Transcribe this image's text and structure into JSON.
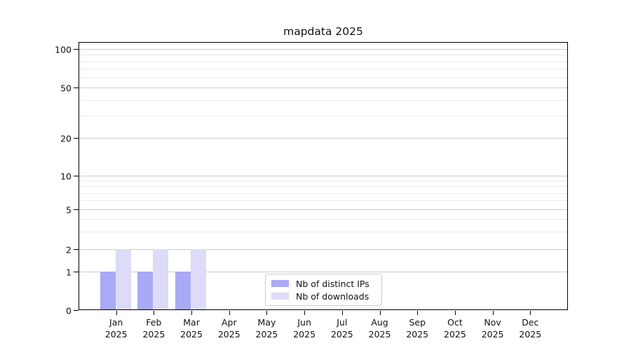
{
  "chart_data": {
    "type": "bar",
    "title": "mapdata 2025",
    "categories": [
      "Jan",
      "Feb",
      "Mar",
      "Apr",
      "May",
      "Jun",
      "Jul",
      "Aug",
      "Sep",
      "Oct",
      "Nov",
      "Dec"
    ],
    "category_year": "2025",
    "series": [
      {
        "name": "Nb of distinct IPs",
        "color": "#a9a9f5",
        "values": [
          1,
          1,
          1,
          0,
          0,
          0,
          0,
          0,
          0,
          0,
          0,
          0
        ]
      },
      {
        "name": "Nb of downloads",
        "color": "#dcdcf8",
        "values": [
          2,
          2,
          2,
          0,
          0,
          0,
          0,
          0,
          0,
          0,
          0,
          0
        ]
      }
    ],
    "yaxis": {
      "scale": "symlog",
      "ticks": [
        0,
        1,
        2,
        5,
        10,
        20,
        50,
        100
      ],
      "minor_ticks": [
        3,
        4,
        6,
        7,
        8,
        9,
        30,
        40,
        60,
        70,
        80,
        90
      ],
      "ylim": [
        0,
        110
      ]
    },
    "grid": true,
    "legend": {
      "position": "inside-bottom-center",
      "entries": [
        "Nb of distinct IPs",
        "Nb of downloads"
      ]
    }
  }
}
